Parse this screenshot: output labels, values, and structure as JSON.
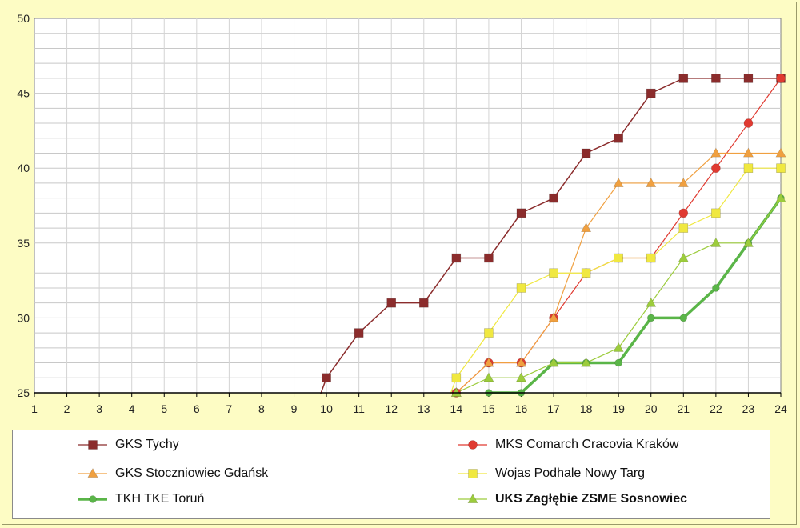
{
  "chart_data": {
    "type": "line",
    "title": "",
    "xlabel": "",
    "ylabel": "",
    "xlim": [
      1,
      24
    ],
    "ylim": [
      25,
      50
    ],
    "x": [
      1,
      2,
      3,
      4,
      5,
      6,
      7,
      8,
      9,
      10,
      11,
      12,
      13,
      14,
      15,
      16,
      17,
      18,
      19,
      20,
      21,
      22,
      23,
      24
    ],
    "y_ticks": [
      25,
      30,
      35,
      40,
      45,
      50
    ],
    "grid": true,
    "legend_position": "bottom",
    "series": [
      {
        "name": "GKS Tychy",
        "color": "#8b2c2c",
        "marker": "square",
        "bold": false,
        "lineWidth": 1.5,
        "values": [
          null,
          null,
          null,
          null,
          null,
          null,
          null,
          null,
          null,
          26,
          29,
          31,
          31,
          34,
          34,
          37,
          38,
          41,
          42,
          45,
          46,
          46,
          46,
          46
        ]
      },
      {
        "name": "MKS Comarch Cracovia Kraków",
        "color": "#e03a31",
        "marker": "circle",
        "bold": false,
        "lineWidth": 1.2,
        "values": [
          null,
          null,
          null,
          null,
          null,
          null,
          null,
          null,
          null,
          null,
          null,
          null,
          null,
          25,
          27,
          27,
          30,
          33,
          34,
          34,
          37,
          40,
          43,
          46
        ]
      },
      {
        "name": "GKS Stoczniowiec Gdańsk",
        "color": "#f0a040",
        "marker": "triangle",
        "bold": false,
        "lineWidth": 1.2,
        "values": [
          null,
          null,
          null,
          null,
          null,
          null,
          null,
          null,
          null,
          null,
          null,
          null,
          null,
          25,
          27,
          27,
          30,
          36,
          39,
          39,
          39,
          41,
          41,
          41
        ]
      },
      {
        "name": "Wojas Podhale Nowy Targ",
        "color": "#f0e840",
        "marker": "square",
        "bold": false,
        "lineWidth": 1.2,
        "values": [
          null,
          null,
          null,
          null,
          null,
          null,
          null,
          null,
          null,
          null,
          null,
          null,
          null,
          26,
          29,
          32,
          33,
          33,
          34,
          34,
          36,
          37,
          40,
          40
        ]
      },
      {
        "name": "TKH TKE Toruń",
        "color": "#5ab548",
        "marker": "circle",
        "bold": true,
        "lineWidth": 3.5,
        "values": [
          null,
          null,
          null,
          null,
          null,
          null,
          null,
          null,
          null,
          null,
          null,
          null,
          null,
          null,
          25,
          25,
          27,
          27,
          27,
          30,
          30,
          32,
          35,
          38
        ]
      },
      {
        "name": "UKS Zagłębie ZSME Sosnowiec",
        "color": "#9ccc3c",
        "marker": "triangle",
        "bold": false,
        "lineWidth": 1.2,
        "labelBold": true,
        "values": [
          null,
          null,
          null,
          null,
          null,
          null,
          null,
          null,
          null,
          null,
          null,
          null,
          null,
          25,
          26,
          26,
          27,
          27,
          28,
          31,
          34,
          35,
          35,
          38
        ]
      }
    ]
  }
}
